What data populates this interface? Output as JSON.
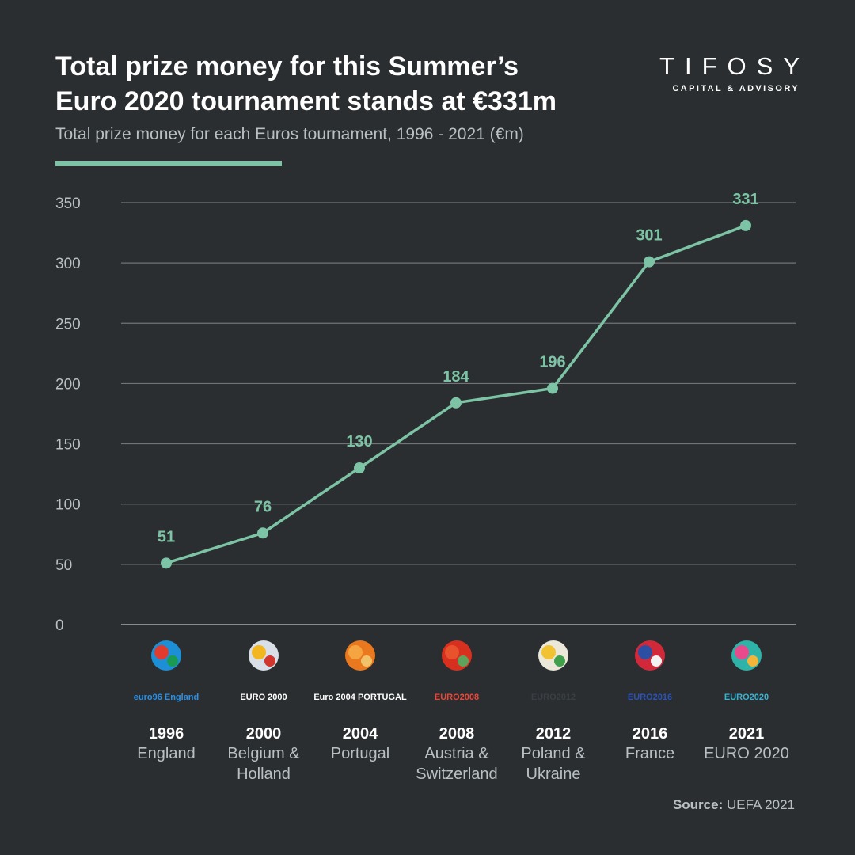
{
  "header": {
    "title_line1": "Total prize money for this Summer’s",
    "title_line2": "Euro 2020 tournament stands at €331m",
    "subtitle": "Total prize money for each Euros tournament, 1996 - 2021 (€m)"
  },
  "brand": {
    "name": "TIFOSY",
    "tagline": "CAPITAL & ADVISORY"
  },
  "source": {
    "label": "Source:",
    "text": "UEFA 2021"
  },
  "colors": {
    "background": "#2a2e30",
    "accent": "#7cc4a5",
    "gridline": "#6f7476",
    "muted_text": "#b9c0c3"
  },
  "chart_data": {
    "type": "line",
    "categories": [
      "1996",
      "2000",
      "2004",
      "2008",
      "2012",
      "2016",
      "2021"
    ],
    "category_hosts": [
      [
        "England"
      ],
      [
        "Belgium &",
        "Holland"
      ],
      [
        "Portugal"
      ],
      [
        "Austria &",
        "Switzerland"
      ],
      [
        "Poland &",
        "Ukraine"
      ],
      [
        "France"
      ],
      [
        "EURO 2020"
      ]
    ],
    "category_logo_texts": [
      "euro96 England",
      "EURO 2000",
      "Euro 2004 PORTUGAL",
      "EURO2008",
      "EURO2012",
      "EURO2016",
      "EURO2020"
    ],
    "series": [
      {
        "values": [
          51,
          76,
          130,
          184,
          196,
          301,
          331
        ]
      }
    ],
    "data_labels": [
      "51",
      "76",
      "130",
      "184",
      "196",
      "301",
      "331"
    ],
    "yticks": [
      0,
      50,
      100,
      150,
      200,
      250,
      300,
      350
    ],
    "ylim": [
      0,
      350
    ],
    "grid": true,
    "legend": "none"
  }
}
